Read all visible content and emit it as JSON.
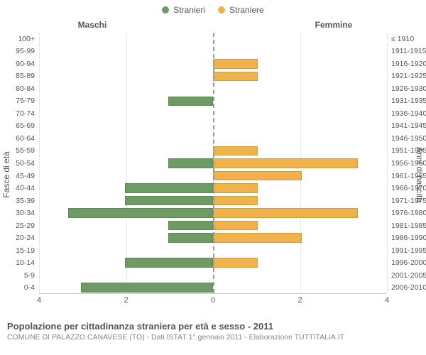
{
  "legend": {
    "male": {
      "label": "Stranieri",
      "color": "#6d9b63"
    },
    "female": {
      "label": "Straniere",
      "color": "#f0b24a"
    }
  },
  "header": {
    "male_title": "Maschi",
    "female_title": "Femmine"
  },
  "axis_left_label": "Fasce di età",
  "axis_right_label": "Anni di nascita",
  "x": {
    "max": 4,
    "step": 2,
    "ticks": [
      4,
      2,
      0,
      2,
      4
    ]
  },
  "background_color": "#ffffff",
  "grid_color": "#e8e8e8",
  "rows": [
    {
      "age": "100+",
      "birth": "≤ 1910",
      "m": 0,
      "f": 0
    },
    {
      "age": "95-99",
      "birth": "1911-1915",
      "m": 0,
      "f": 0
    },
    {
      "age": "90-94",
      "birth": "1916-1920",
      "m": 0,
      "f": 1
    },
    {
      "age": "85-89",
      "birth": "1921-1925",
      "m": 0,
      "f": 1
    },
    {
      "age": "80-84",
      "birth": "1926-1930",
      "m": 0,
      "f": 0
    },
    {
      "age": "75-79",
      "birth": "1931-1935",
      "m": 1,
      "f": 0
    },
    {
      "age": "70-74",
      "birth": "1936-1940",
      "m": 0,
      "f": 0
    },
    {
      "age": "65-69",
      "birth": "1941-1945",
      "m": 0,
      "f": 0
    },
    {
      "age": "60-64",
      "birth": "1946-1950",
      "m": 0,
      "f": 0
    },
    {
      "age": "55-59",
      "birth": "1951-1955",
      "m": 0,
      "f": 1
    },
    {
      "age": "50-54",
      "birth": "1956-1960",
      "m": 1,
      "f": 3.3
    },
    {
      "age": "45-49",
      "birth": "1961-1965",
      "m": 0,
      "f": 2
    },
    {
      "age": "40-44",
      "birth": "1966-1970",
      "m": 2,
      "f": 1
    },
    {
      "age": "35-39",
      "birth": "1971-1975",
      "m": 2,
      "f": 1
    },
    {
      "age": "30-34",
      "birth": "1976-1980",
      "m": 3.3,
      "f": 3.3
    },
    {
      "age": "25-29",
      "birth": "1981-1985",
      "m": 1,
      "f": 1
    },
    {
      "age": "20-24",
      "birth": "1986-1990",
      "m": 1,
      "f": 2
    },
    {
      "age": "15-19",
      "birth": "1991-1995",
      "m": 0,
      "f": 0
    },
    {
      "age": "10-14",
      "birth": "1996-2000",
      "m": 2,
      "f": 1
    },
    {
      "age": "5-9",
      "birth": "2001-2005",
      "m": 0,
      "f": 0
    },
    {
      "age": "0-4",
      "birth": "2006-2010",
      "m": 3,
      "f": 0
    }
  ],
  "footer": {
    "title": "Popolazione per cittadinanza straniera per età e sesso - 2011",
    "subtitle": "COMUNE DI PALAZZO CANAVESE (TO) - Dati ISTAT 1° gennaio 2011 - Elaborazione TUTTITALIA.IT"
  }
}
